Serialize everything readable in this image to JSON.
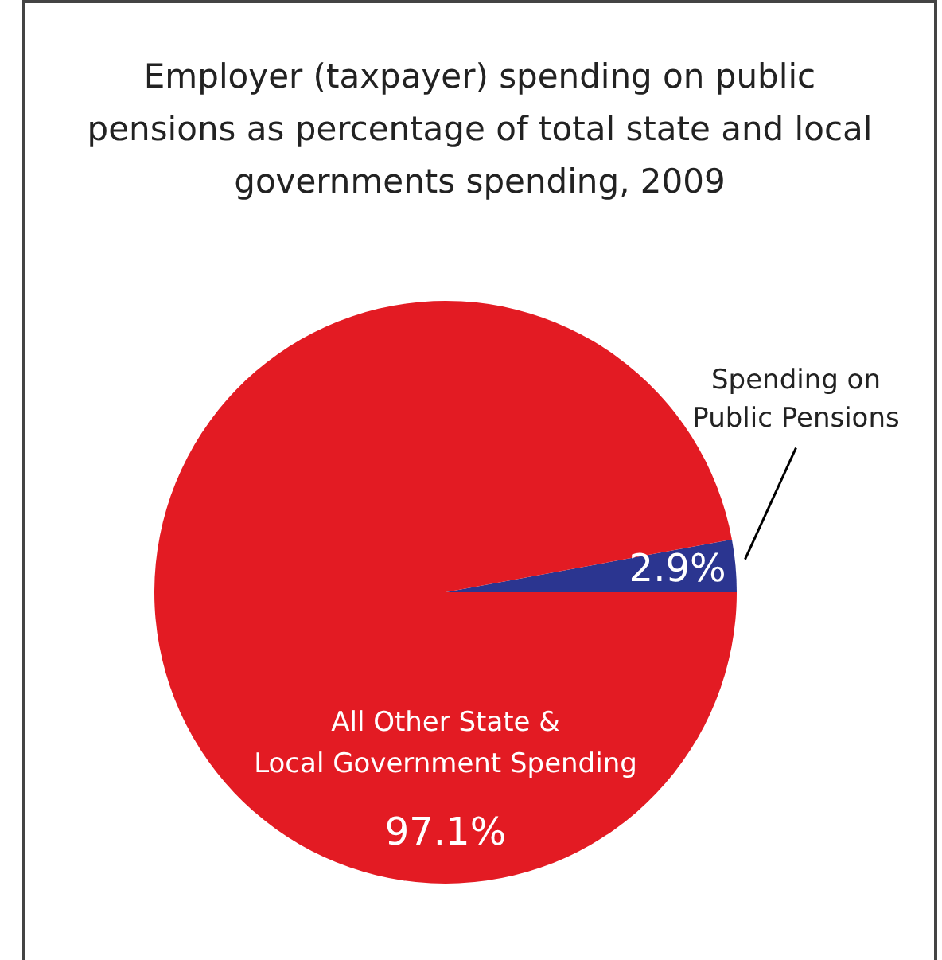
{
  "chart_data": {
    "type": "pie",
    "title": "Employer (taxpayer) spending on public pensions as percentage of total state and local governments spending, 2009",
    "categories": [
      "Spending on Public Pensions",
      "All Other State & Local Government Spending"
    ],
    "values": [
      2.9,
      97.1
    ],
    "colors": [
      "#2b3590",
      "#e31b23"
    ],
    "value_labels": [
      "2.9%",
      "97.1%"
    ]
  }
}
